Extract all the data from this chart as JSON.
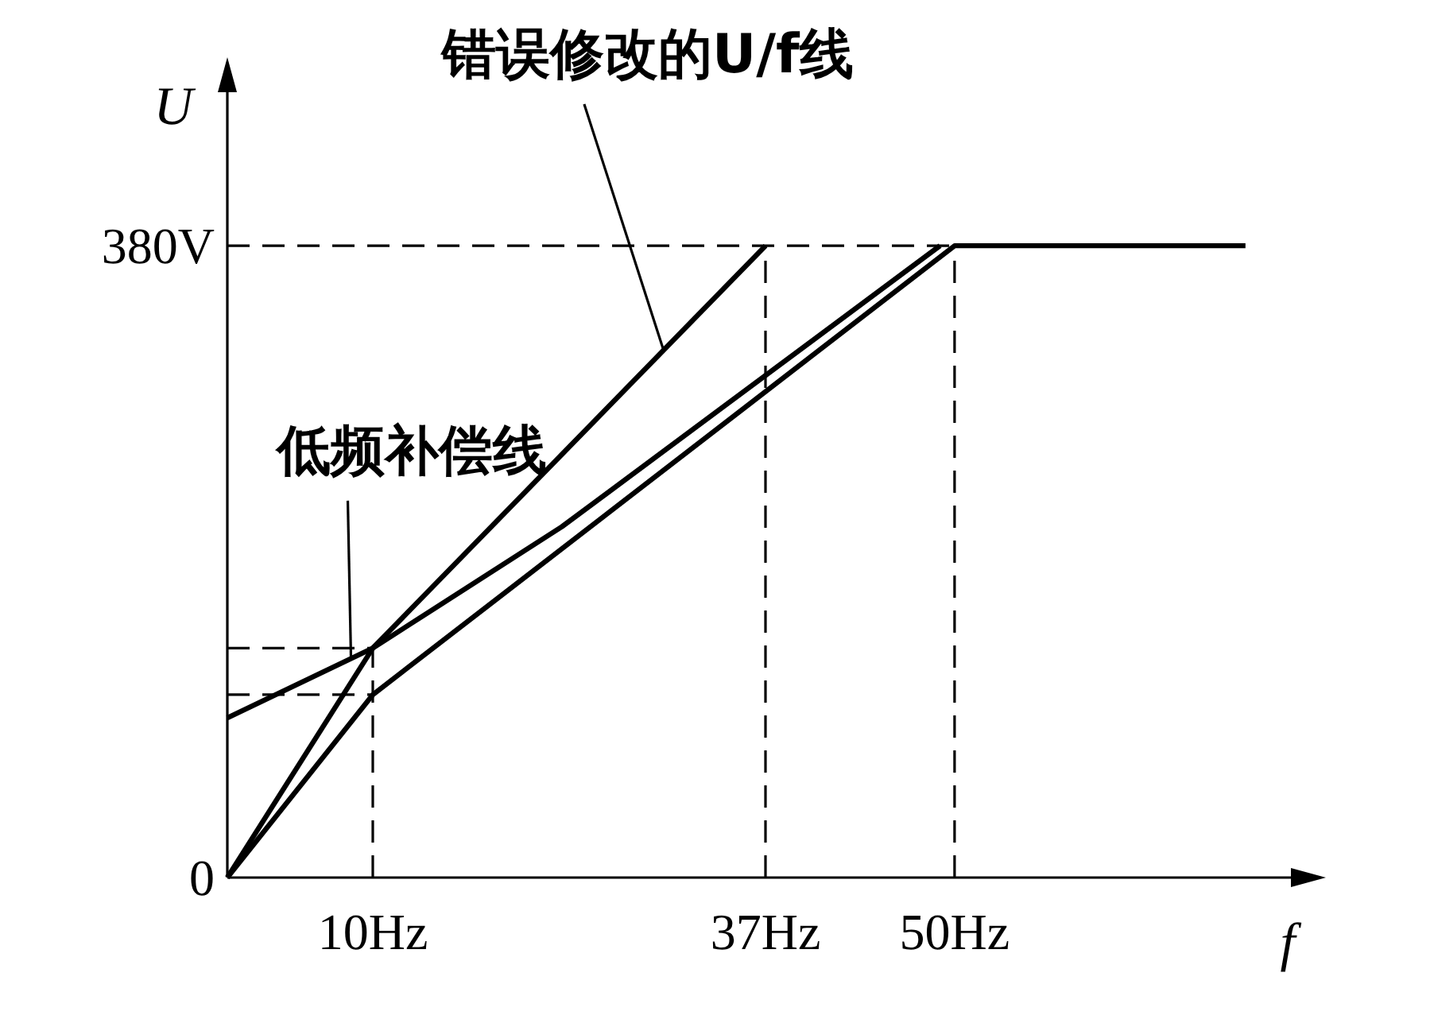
{
  "chart_data": {
    "type": "line",
    "xlabel": "f",
    "ylabel": "U",
    "xlim": [
      0,
      74
    ],
    "ylim": [
      0,
      480
    ],
    "xticks": [
      {
        "value": 0,
        "label": null
      },
      {
        "value": 10,
        "label": "10Hz"
      },
      {
        "value": 37,
        "label": "37Hz"
      },
      {
        "value": 50,
        "label": "50Hz"
      }
    ],
    "yticks": [
      0,
      {
        "value": 380,
        "label": "380V"
      }
    ],
    "grid": false,
    "marker": "none",
    "line_style": "solid",
    "series": [
      {
        "color": "#000000",
        "x": [
          0,
          10,
          37
        ],
        "values": [
          0,
          138,
          380
        ]
      },
      {
        "color": "#000000",
        "x": [
          0,
          10,
          50,
          70
        ],
        "values": [
          0,
          110,
          380,
          380
        ]
      },
      {
        "color": "#000000",
        "x": [
          0,
          10,
          23,
          49
        ],
        "values": [
          96,
          138,
          211,
          380
        ]
      }
    ],
    "ref_lines": [
      {
        "axis": "y",
        "value": 380,
        "line_style": "dashed",
        "color": "#000000"
      },
      {
        "axis": "y",
        "value": 138,
        "line_style": "dashed",
        "color": "#000000"
      },
      {
        "axis": "y",
        "value": 110,
        "line_style": "dashed",
        "color": "#000000"
      },
      {
        "axis": "x",
        "value": 10,
        "line_style": "dashed",
        "color": "#000000"
      },
      {
        "axis": "x",
        "value": 37,
        "line_style": "dashed",
        "color": "#000000"
      },
      {
        "axis": "x",
        "value": 50,
        "line_style": "dashed",
        "color": "#000000"
      }
    ],
    "annotations": [
      {
        "text": "错误修改的U/f线",
        "x": 30,
        "y": 317
      },
      {
        "text": "低频补偿线",
        "x": 8.5,
        "y": 132
      }
    ]
  }
}
